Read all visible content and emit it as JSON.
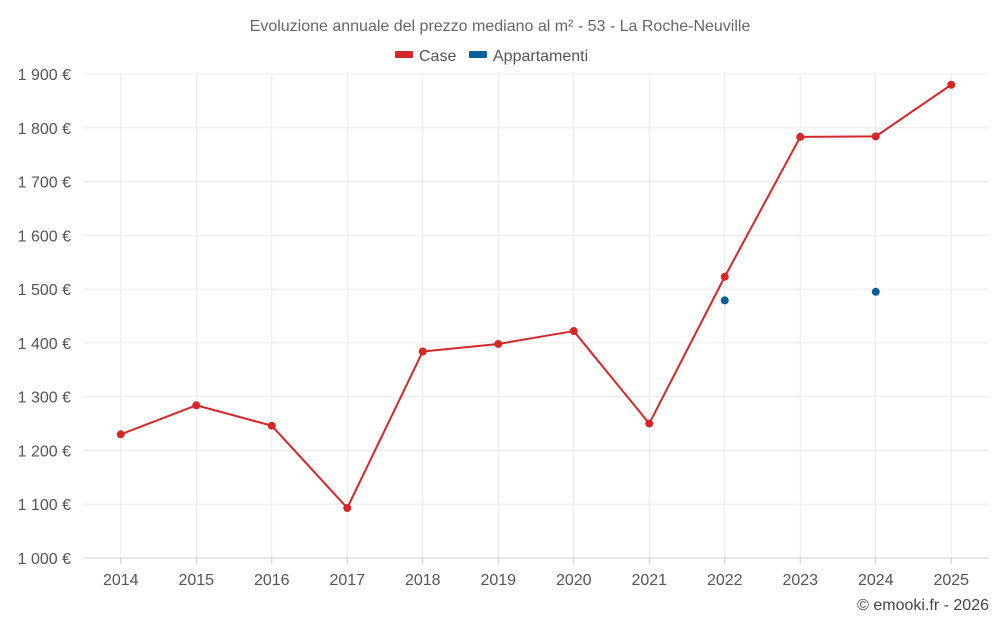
{
  "chart_data": {
    "type": "line",
    "title": "Evoluzione annuale del prezzo mediano al m² - 53 - La Roche-Neuville",
    "categories": [
      "2014",
      "2015",
      "2016",
      "2017",
      "2018",
      "2019",
      "2020",
      "2021",
      "2022",
      "2023",
      "2024",
      "2025"
    ],
    "ylim": [
      1000,
      1900
    ],
    "yticks": [
      1000,
      1100,
      1200,
      1300,
      1400,
      1500,
      1600,
      1700,
      1800,
      1900
    ],
    "ytick_labels": [
      "1 000 €",
      "1 100 €",
      "1 200 €",
      "1 300 €",
      "1 400 €",
      "1 500 €",
      "1 600 €",
      "1 700 €",
      "1 800 €",
      "1 900 €"
    ],
    "grid": true,
    "legend_position": "top-center",
    "series": [
      {
        "name": "Case",
        "color": "#d62728",
        "values": [
          1230,
          1284,
          1246,
          1093,
          1384,
          1398,
          1422,
          1250,
          1523,
          1783,
          1784,
          1880
        ]
      },
      {
        "name": "Appartamenti",
        "color": "#0b5f99",
        "values": [
          null,
          null,
          null,
          null,
          null,
          null,
          null,
          null,
          1479,
          null,
          1495,
          null
        ]
      }
    ]
  },
  "credit": "© emooki.fr - 2026"
}
